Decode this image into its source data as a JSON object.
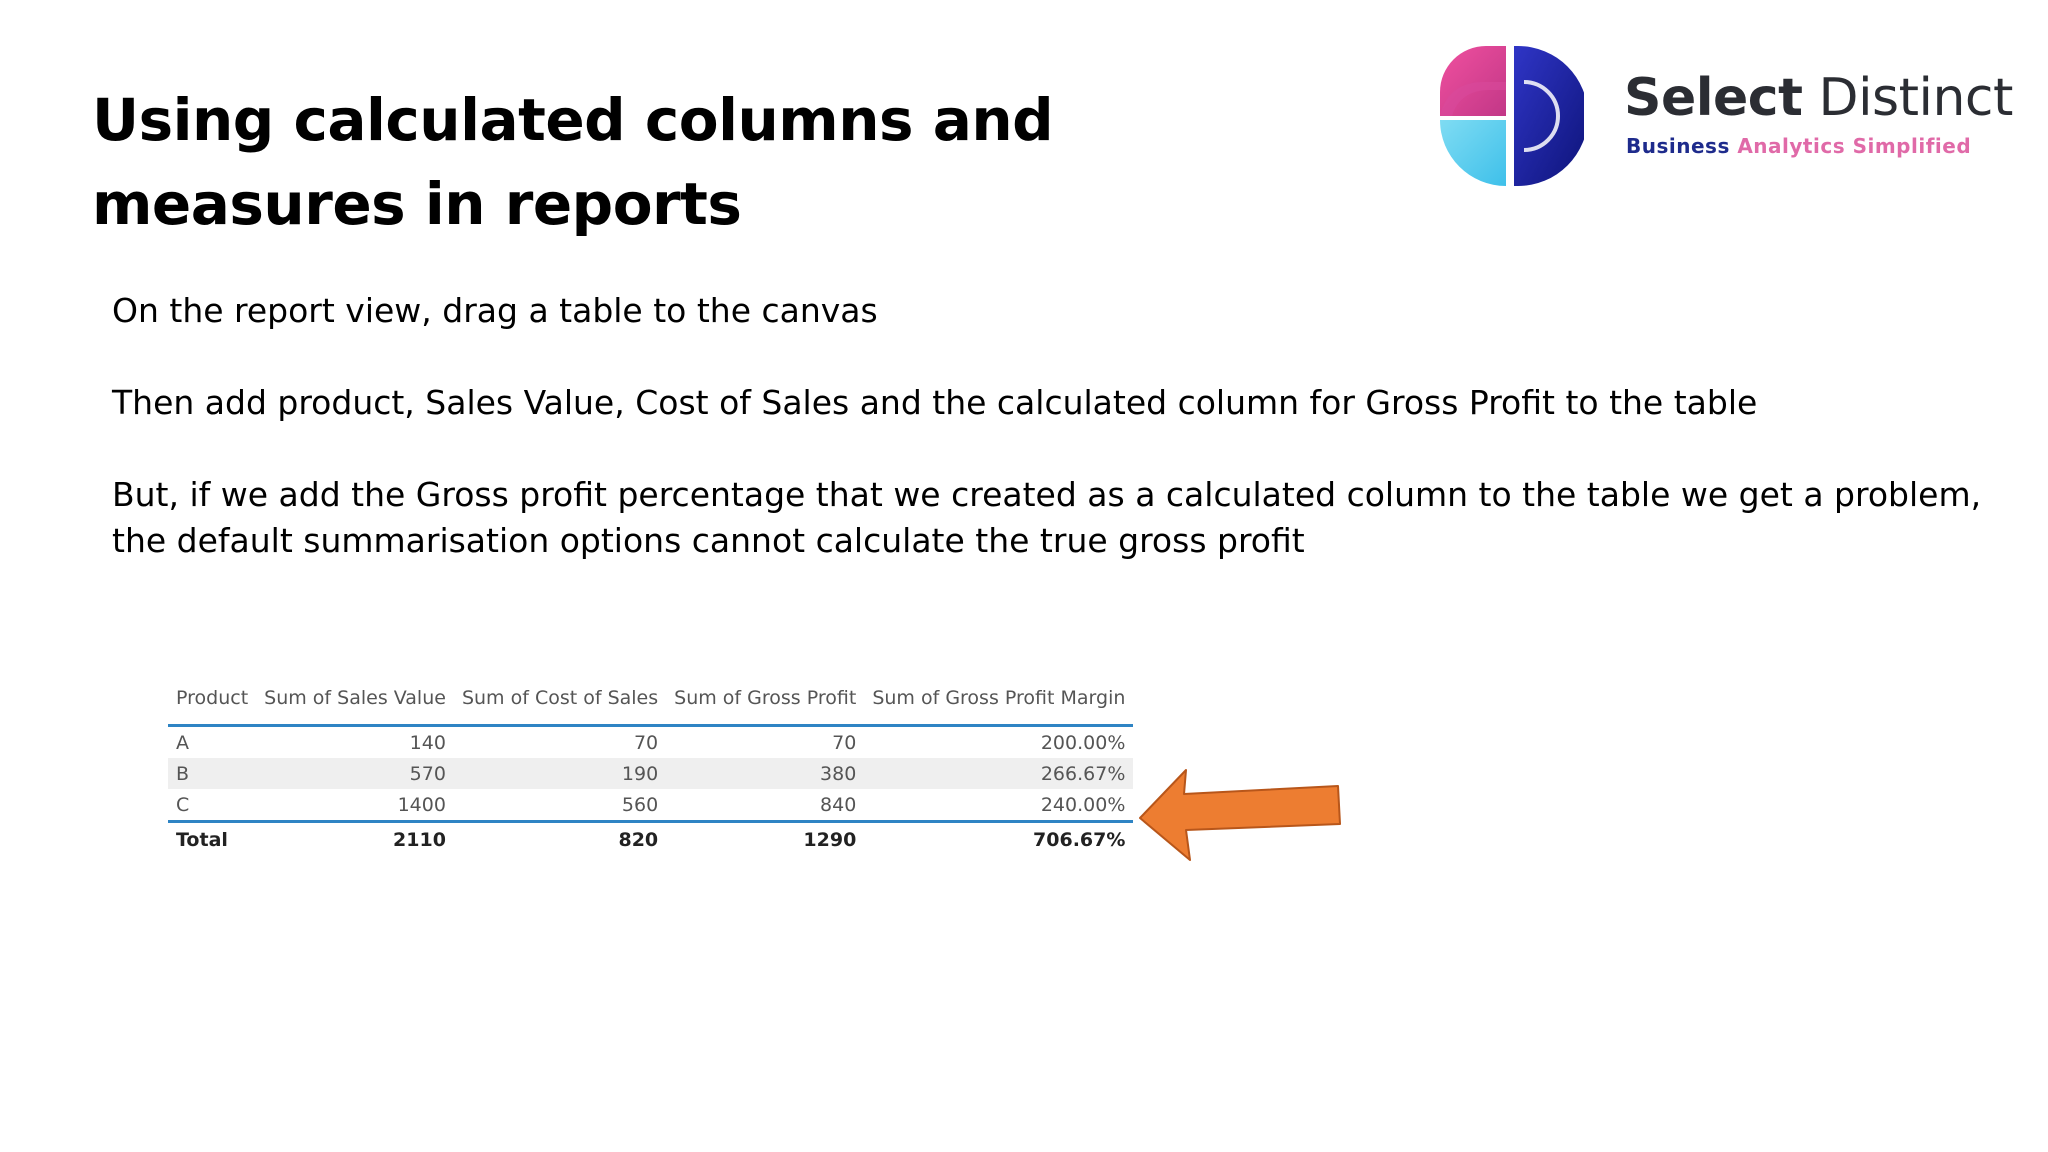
{
  "slide": {
    "title_line1": "Using calculated columns and",
    "title_line2": "measures in reports",
    "paragraphs": [
      "On the report view, drag a table to the canvas",
      "Then add product, Sales Value, Cost of Sales and the calculated column for Gross Profit to the table",
      "But, if we add the Gross profit percentage that we created as a calculated column to the table we get a problem, the default summarisation options cannot calculate the true gross profit"
    ]
  },
  "logo": {
    "name_bold": "Select",
    "name_regular": "Distinct",
    "tagline_part1": "Business",
    "tagline_part2": "Analytics Simplified",
    "colors": {
      "pink": "#e2459b",
      "cyan": "#5ed0ee",
      "navy": "#151c8e",
      "text": "#2b2d33"
    }
  },
  "table": {
    "headers": [
      "Product",
      "Sum of Sales Value",
      "Sum of Cost of Sales",
      "Sum of Gross Profit",
      "Sum of Gross Profit Margin"
    ],
    "rows": [
      [
        "A",
        "140",
        "70",
        "70",
        "200.00%"
      ],
      [
        "B",
        "570",
        "190",
        "380",
        "266.67%"
      ],
      [
        "C",
        "1400",
        "560",
        "840",
        "240.00%"
      ]
    ],
    "total": [
      "Total",
      "2110",
      "820",
      "1290",
      "706.67%"
    ],
    "accent_color": "#2e84c4"
  },
  "annotation": {
    "shape": "left-arrow",
    "color": "#ed7d31"
  }
}
